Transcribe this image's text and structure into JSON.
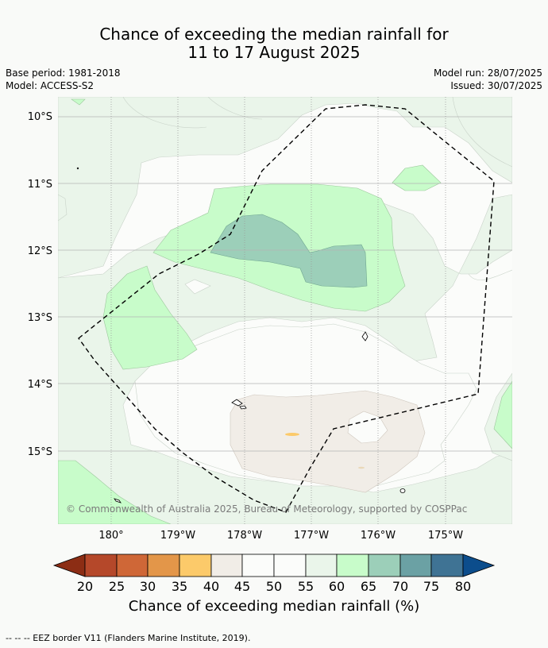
{
  "header": {
    "title_line1": "Chance of exceeding the median rainfall for",
    "title_line2": "11 to 17 August 2025",
    "base_period": "Base period: 1981-2018",
    "model": "Model: ACCESS-S2",
    "model_run": "Model run: 28/07/2025",
    "issued": "Issued: 30/07/2025"
  },
  "map": {
    "lat_labels": [
      "10°S",
      "11°S",
      "12°S",
      "13°S",
      "14°S",
      "15°S"
    ],
    "lon_labels": [
      "180°",
      "179°W",
      "178°W",
      "177°W",
      "176°W",
      "175°W"
    ],
    "copyright": "© Commonwealth of Australia 2025, Bureau of Meteorology, supported by COSPPac",
    "eez_border": "dashed"
  },
  "colorbar": {
    "ticks": [
      "20",
      "25",
      "30",
      "35",
      "40",
      "45",
      "50",
      "55",
      "60",
      "65",
      "70",
      "75",
      "80"
    ],
    "colors": {
      "lt20": "#8c2d14",
      "20-25": "#b5482a",
      "25-30": "#cf6737",
      "30-35": "#e39649",
      "35-40": "#fcca6a",
      "40-45": "#f1ede7",
      "45-50": "#fbfcfa",
      "50-55": "#fbfcfa",
      "55-60": "#eaf5ea",
      "60-65": "#c8fcca",
      "65-70": "#9ccfb9",
      "70-75": "#6ba1a4",
      "75-80": "#3f7394",
      "gt80": "#0c4d8c"
    },
    "title": "Chance of exceeding median rainfall (%)"
  },
  "footer": {
    "legend": "--  --  -- EEZ border V11 (Flanders Marine Institute, 2019)."
  }
}
